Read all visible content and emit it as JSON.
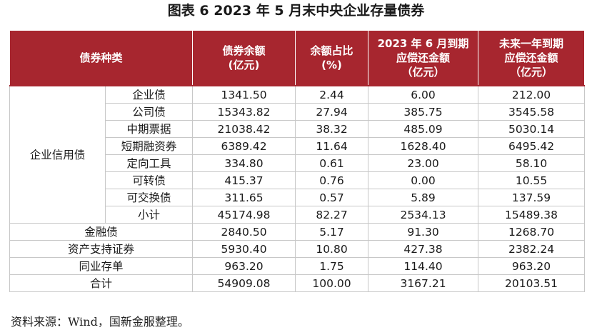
{
  "title": "图表 6  2023 年 5 月末中央企业存量债券",
  "headers": {
    "type": "债券种类",
    "balance_l1": "债券余额",
    "balance_l2": "(亿元)",
    "share_l1": "余额占比",
    "share_l2": "(%)",
    "due_june_l1": "2023 年 6 月到期",
    "due_june_l2": "应偿还金额",
    "due_june_l3": "（亿元）",
    "due_year_l1": "未来一年到期",
    "due_year_l2": "应偿还金额",
    "due_year_l3": "（亿元）"
  },
  "group_label": "企业信用债",
  "group_rows": [
    {
      "name": "企业债",
      "balance": "1341.50",
      "share": "2.44",
      "due_june": "6.00",
      "due_year": "212.00"
    },
    {
      "name": "公司债",
      "balance": "15343.82",
      "share": "27.94",
      "due_june": "385.75",
      "due_year": "3545.58"
    },
    {
      "name": "中期票据",
      "balance": "21038.42",
      "share": "38.32",
      "due_june": "485.09",
      "due_year": "5030.14"
    },
    {
      "name": "短期融资券",
      "balance": "6389.42",
      "share": "11.64",
      "due_june": "1628.40",
      "due_year": "6495.42"
    },
    {
      "name": "定向工具",
      "balance": "334.80",
      "share": "0.61",
      "due_june": "23.00",
      "due_year": "58.10"
    },
    {
      "name": "可转债",
      "balance": "415.37",
      "share": "0.76",
      "due_june": "0.00",
      "due_year": "10.55"
    },
    {
      "name": "可交换债",
      "balance": "311.65",
      "share": "0.57",
      "due_june": "5.89",
      "due_year": "137.59"
    },
    {
      "name": "小计",
      "balance": "45174.98",
      "share": "82.27",
      "due_june": "2534.13",
      "due_year": "15489.38"
    }
  ],
  "other_rows": [
    {
      "name": "金融债",
      "balance": "2840.50",
      "share": "5.17",
      "due_june": "91.30",
      "due_year": "1268.70"
    },
    {
      "name": "资产支持证券",
      "balance": "5930.40",
      "share": "10.80",
      "due_june": "427.38",
      "due_year": "2382.24"
    },
    {
      "name": "同业存单",
      "balance": "963.20",
      "share": "1.75",
      "due_june": "114.40",
      "due_year": "963.20"
    },
    {
      "name": "合计",
      "balance": "54909.08",
      "share": "100.00",
      "due_june": "3167.21",
      "due_year": "20103.51"
    }
  ],
  "source": "资料来源：Wind，国新金服整理。",
  "colors": {
    "header_bg": "#a7262f",
    "header_text": "#ffffff",
    "border": "#c7c7c7"
  }
}
